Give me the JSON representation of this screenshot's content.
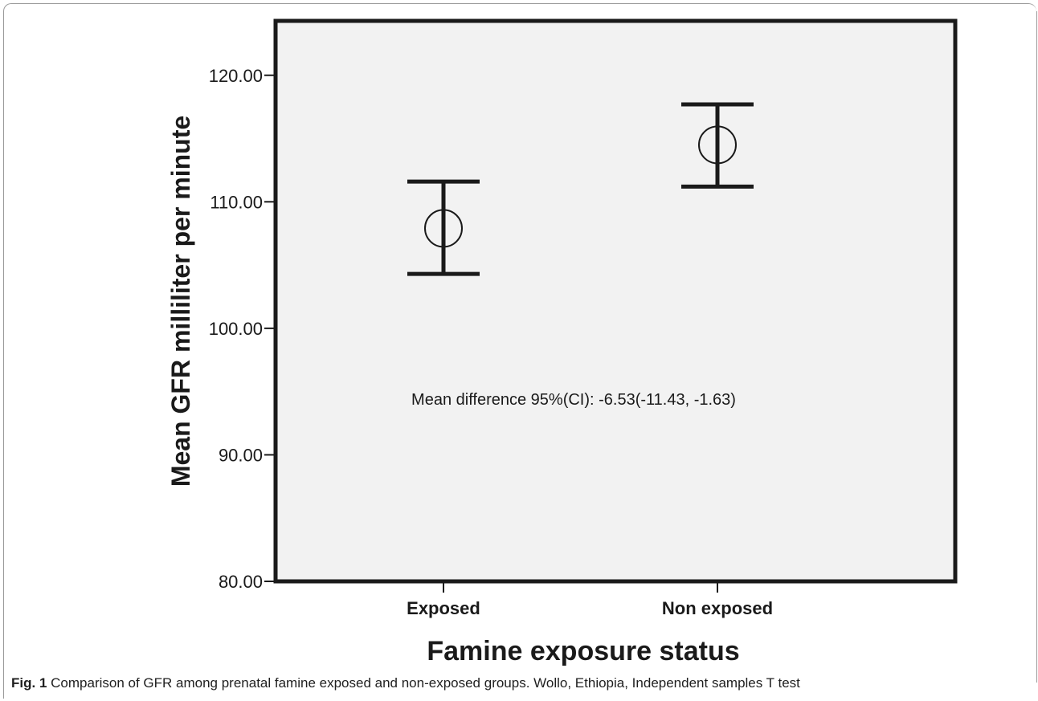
{
  "chart_data": {
    "type": "errorbar",
    "categories": [
      "Exposed",
      "Non exposed"
    ],
    "series": [
      {
        "means": [
          107.9,
          114.5
        ],
        "ci_lower": [
          104.3,
          111.2
        ],
        "ci_upper": [
          111.6,
          117.7
        ]
      }
    ],
    "xlabel": "Famine exposure status",
    "ylabel": "Mean GFR milliliter per minute",
    "ylim": [
      80,
      120
    ],
    "yticks": [
      "80.00",
      "90.00",
      "100.00",
      "110.00",
      "120.00"
    ],
    "annotation": "Mean difference 95%(CI): -6.53(-11.43, -1.63)",
    "grid": false,
    "colors": {
      "plot_bg": "#f2f2f2",
      "ink": "#1a1a1a"
    }
  },
  "caption": {
    "label": "Fig. 1",
    "text": "Comparison of GFR among prenatal famine exposed and non-exposed groups. Wollo, Ethiopia, Independent samples T test"
  }
}
